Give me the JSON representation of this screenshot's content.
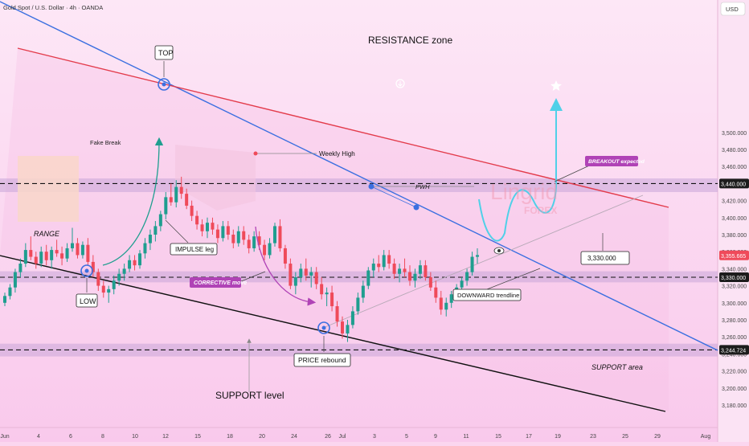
{
  "header": {
    "symbol": "Gold Spot / U.S. Dollar · 4h · OANDA",
    "currency": "USD"
  },
  "chart_data": {
    "type": "candlestick",
    "title": "",
    "ylim": [
      3160,
      3520
    ],
    "y_ticks": [
      3180,
      3200,
      3220,
      3240,
      3260,
      3280,
      3300,
      3320,
      3340,
      3360,
      3380,
      3400,
      3420,
      3440,
      3460,
      3480,
      3500
    ],
    "y_tick_labels": [
      "3,180.000",
      "3,200.000",
      "3,220.000",
      "3,240.000",
      "3,260.000",
      "3,280.000",
      "3,300.000",
      "3,320.000",
      "3,340.000",
      "3,360.000",
      "3,380.000",
      "3,400.000",
      "3,420.000",
      "3,440.000",
      "3,460.000",
      "3,480.000",
      "3,500.000"
    ],
    "x_ticks": [
      "Jun",
      "4",
      "6",
      "8",
      "10",
      "12",
      "15",
      "18",
      "20",
      "24",
      "26",
      "Jul",
      "3",
      "5",
      "9",
      "11",
      "15",
      "17",
      "19",
      "23",
      "25",
      "29",
      "Aug"
    ],
    "price_tags": [
      {
        "value": 3440,
        "label": "3,440.000",
        "style": "dark"
      },
      {
        "value": 3355.665,
        "label": "3,355.665",
        "style": "red"
      },
      {
        "value": 3330,
        "label": "3,330.000",
        "style": "dark"
      },
      {
        "value": 3244.724,
        "label": "3,244.724",
        "style": "dark"
      }
    ],
    "horizontal_levels": [
      3440,
      3330,
      3244.724
    ],
    "zones": [
      {
        "name": "resistance",
        "from": 3430,
        "to": 3446
      },
      {
        "name": "mid",
        "from": 3324,
        "to": 3337
      },
      {
        "name": "support",
        "from": 3237,
        "to": 3252
      }
    ],
    "accent_colors": {
      "bull": "#1f9e8f",
      "bear": "#ef4a5a",
      "trend_blue": "#3b6fe0",
      "resistance_line": "#e33b4b",
      "projection": "#4fd0e8",
      "annotation": "#b043b6"
    },
    "candles": [
      [
        3300,
        3312,
        3296,
        3308
      ],
      [
        3308,
        3322,
        3304,
        3318
      ],
      [
        3318,
        3340,
        3312,
        3336
      ],
      [
        3336,
        3352,
        3330,
        3346
      ],
      [
        3346,
        3370,
        3342,
        3362
      ],
      [
        3362,
        3378,
        3350,
        3354
      ],
      [
        3354,
        3360,
        3340,
        3346
      ],
      [
        3346,
        3366,
        3342,
        3360
      ],
      [
        3360,
        3368,
        3344,
        3350
      ],
      [
        3350,
        3366,
        3340,
        3362
      ],
      [
        3362,
        3374,
        3354,
        3358
      ],
      [
        3358,
        3366,
        3344,
        3352
      ],
      [
        3352,
        3370,
        3348,
        3364
      ],
      [
        3364,
        3388,
        3360,
        3370
      ],
      [
        3370,
        3376,
        3352,
        3356
      ],
      [
        3356,
        3372,
        3352,
        3368
      ],
      [
        3368,
        3376,
        3344,
        3348
      ],
      [
        3348,
        3356,
        3330,
        3336
      ],
      [
        3336,
        3340,
        3314,
        3320
      ],
      [
        3320,
        3326,
        3306,
        3312
      ],
      [
        3312,
        3320,
        3300,
        3316
      ],
      [
        3316,
        3332,
        3310,
        3326
      ],
      [
        3326,
        3340,
        3320,
        3334
      ],
      [
        3334,
        3346,
        3326,
        3340
      ],
      [
        3340,
        3356,
        3336,
        3350
      ],
      [
        3350,
        3356,
        3338,
        3344
      ],
      [
        3344,
        3362,
        3340,
        3358
      ],
      [
        3358,
        3376,
        3352,
        3370
      ],
      [
        3370,
        3386,
        3362,
        3380
      ],
      [
        3380,
        3396,
        3372,
        3390
      ],
      [
        3390,
        3408,
        3384,
        3404
      ],
      [
        3404,
        3430,
        3398,
        3424
      ],
      [
        3424,
        3440,
        3414,
        3418
      ],
      [
        3418,
        3444,
        3412,
        3436
      ],
      [
        3436,
        3448,
        3422,
        3428
      ],
      [
        3428,
        3434,
        3410,
        3414
      ],
      [
        3414,
        3420,
        3396,
        3402
      ],
      [
        3402,
        3408,
        3386,
        3392
      ],
      [
        3392,
        3398,
        3378,
        3384
      ],
      [
        3384,
        3400,
        3376,
        3394
      ],
      [
        3394,
        3400,
        3380,
        3386
      ],
      [
        3386,
        3392,
        3370,
        3376
      ],
      [
        3376,
        3396,
        3372,
        3390
      ],
      [
        3390,
        3396,
        3374,
        3380
      ],
      [
        3380,
        3386,
        3364,
        3370
      ],
      [
        3370,
        3390,
        3366,
        3384
      ],
      [
        3384,
        3390,
        3368,
        3374
      ],
      [
        3374,
        3380,
        3358,
        3364
      ],
      [
        3364,
        3384,
        3360,
        3378
      ],
      [
        3378,
        3384,
        3362,
        3368
      ],
      [
        3368,
        3374,
        3350,
        3356
      ],
      [
        3356,
        3376,
        3352,
        3370
      ],
      [
        3370,
        3394,
        3366,
        3390
      ],
      [
        3390,
        3398,
        3360,
        3364
      ],
      [
        3364,
        3368,
        3340,
        3346
      ],
      [
        3346,
        3352,
        3316,
        3320
      ],
      [
        3320,
        3336,
        3310,
        3330
      ],
      [
        3330,
        3346,
        3324,
        3340
      ],
      [
        3340,
        3352,
        3326,
        3332
      ],
      [
        3332,
        3342,
        3318,
        3336
      ],
      [
        3336,
        3342,
        3316,
        3322
      ],
      [
        3322,
        3330,
        3304,
        3310
      ],
      [
        3310,
        3318,
        3296,
        3312
      ],
      [
        3312,
        3320,
        3290,
        3296
      ],
      [
        3296,
        3302,
        3272,
        3278
      ],
      [
        3278,
        3284,
        3258,
        3264
      ],
      [
        3264,
        3280,
        3254,
        3274
      ],
      [
        3274,
        3296,
        3270,
        3290
      ],
      [
        3290,
        3312,
        3286,
        3306
      ],
      [
        3306,
        3326,
        3300,
        3320
      ],
      [
        3320,
        3342,
        3316,
        3338
      ],
      [
        3338,
        3352,
        3330,
        3346
      ],
      [
        3346,
        3356,
        3336,
        3342
      ],
      [
        3342,
        3362,
        3338,
        3356
      ],
      [
        3356,
        3362,
        3340,
        3346
      ],
      [
        3346,
        3352,
        3328,
        3334
      ],
      [
        3334,
        3346,
        3324,
        3340
      ],
      [
        3340,
        3352,
        3330,
        3336
      ],
      [
        3336,
        3344,
        3320,
        3326
      ],
      [
        3326,
        3340,
        3318,
        3334
      ],
      [
        3334,
        3350,
        3328,
        3344
      ],
      [
        3344,
        3350,
        3326,
        3330
      ],
      [
        3330,
        3336,
        3314,
        3318
      ],
      [
        3318,
        3326,
        3300,
        3306
      ],
      [
        3306,
        3314,
        3286,
        3292
      ],
      [
        3292,
        3306,
        3284,
        3300
      ],
      [
        3300,
        3314,
        3294,
        3310
      ],
      [
        3310,
        3322,
        3304,
        3318
      ],
      [
        3318,
        3330,
        3310,
        3326
      ],
      [
        3326,
        3340,
        3320,
        3336
      ],
      [
        3336,
        3360,
        3332,
        3354
      ],
      [
        3354,
        3364,
        3346,
        3356
      ]
    ]
  },
  "annotations": {
    "resistance_zone": "RESISTANCE zone",
    "top": "TOP",
    "low": "LOW",
    "range": "RANGE",
    "fake_break": "Fake Break",
    "impulse_leg": "IMPULSE leg",
    "corrective_move": "CORRECTIVE move",
    "weekly_high": "Weekly High",
    "pwh": "PWH",
    "breakout_expected": "BREAKOUT expected",
    "level_3330": "3,330.000",
    "downward_trendline": "DOWNWARD trendline",
    "price_rebound": "PRICE rebound",
    "support_level": "SUPPORT level",
    "support_area": "SUPPORT area",
    "watermark_brand": "Lingrid",
    "watermark_sub": "FOREX"
  }
}
